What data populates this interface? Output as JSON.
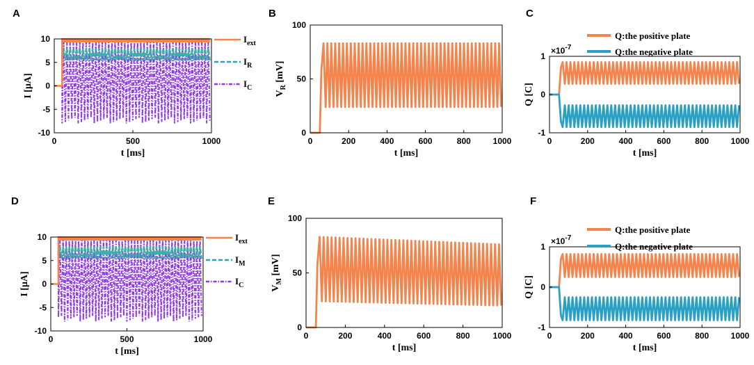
{
  "colors": {
    "orange": "#f4844c",
    "blue": "#2aa0c4",
    "purple": "#9038e8",
    "teal": "#3bb0a4"
  },
  "chart_data": [
    {
      "id": "A",
      "type": "line",
      "panel_label": "A",
      "xlabel": "t [ms]",
      "ylabel": "I [μA]",
      "xlim": [
        0,
        1000
      ],
      "ylim": [
        -10,
        10
      ],
      "x_ticks": [
        "0",
        "500",
        "1000"
      ],
      "y_ticks": [
        "-10",
        "-5",
        "0",
        "5",
        "10"
      ],
      "series": [
        {
          "name": "I_ext",
          "label_main": "I",
          "label_sub": "ext",
          "style": "solid",
          "color": "#f4844c",
          "description": "0 before 50 ms, then constant 10"
        },
        {
          "name": "I_R",
          "label_main": "I",
          "label_sub": "R",
          "style": "dashed",
          "color": "#2aa0c4",
          "description": "oscillates ~5 to ~8 after 50 ms"
        },
        {
          "name": "I_C",
          "label_main": "I",
          "label_sub": "C",
          "style": "dashdot",
          "color": "#9038e8",
          "description": "oscillates ~-8 to ~10 after 50 ms"
        }
      ]
    },
    {
      "id": "B",
      "type": "line",
      "panel_label": "B",
      "xlabel": "t [ms]",
      "ylabel_main": "V",
      "ylabel_sub": "R",
      "ylabel_unit": " [mV]",
      "xlim": [
        0,
        1000
      ],
      "ylim": [
        0,
        100
      ],
      "x_ticks": [
        "0",
        "200",
        "400",
        "600",
        "800",
        "1000"
      ],
      "y_ticks": [
        "0",
        "50",
        "100"
      ],
      "series": [
        {
          "name": "V_R",
          "color": "#f4844c",
          "onset_ms": 50,
          "max": 83,
          "min": 24,
          "cycles": 46
        }
      ]
    },
    {
      "id": "C",
      "type": "line",
      "panel_label": "C",
      "xlabel": "t [ms]",
      "ylabel": "Q [C]",
      "xlim": [
        0,
        1000
      ],
      "ylim": [
        -1,
        1
      ],
      "y_scale_label": "×10",
      "y_scale_exp": "-7",
      "x_ticks": [
        "0",
        "200",
        "400",
        "600",
        "800",
        "1000"
      ],
      "y_ticks": [
        "-1",
        "0",
        "1"
      ],
      "series": [
        {
          "name": "Q:the positive plate",
          "color": "#f4844c",
          "max": 0.85,
          "min": 0.28,
          "cycles": 46
        },
        {
          "name": "Q:the negative plate",
          "color": "#2aa0c4",
          "max": -0.28,
          "min": -0.85,
          "cycles": 46
        }
      ]
    },
    {
      "id": "D",
      "type": "line",
      "panel_label": "D",
      "xlabel": "t [ms]",
      "ylabel": "I [μA]",
      "xlim": [
        0,
        1000
      ],
      "ylim": [
        -10,
        10
      ],
      "x_ticks": [
        "0",
        "500",
        "1000"
      ],
      "y_ticks": [
        "-10",
        "-5",
        "0",
        "5",
        "10"
      ],
      "series": [
        {
          "name": "I_ext",
          "label_main": "I",
          "label_sub": "ext",
          "style": "solid",
          "color": "#f4844c",
          "description": "0 before 50 ms, then constant 10"
        },
        {
          "name": "I_M",
          "label_main": "I",
          "label_sub": "M",
          "style": "dashed",
          "color": "#2aa0c4",
          "description": "oscillates ~5 to ~8 after 50 ms"
        },
        {
          "name": "I_C",
          "label_main": "I",
          "label_sub": "C",
          "style": "dashdot",
          "color": "#9038e8",
          "description": "oscillates ~-8.5 to ~10 after 50 ms"
        }
      ]
    },
    {
      "id": "E",
      "type": "line",
      "panel_label": "E",
      "xlabel": "t [ms]",
      "ylabel_main": "V",
      "ylabel_sub": "M",
      "ylabel_unit": " [mV]",
      "xlim": [
        0,
        1000
      ],
      "ylim": [
        0,
        100
      ],
      "x_ticks": [
        "0",
        "200",
        "400",
        "600",
        "800",
        "1000"
      ],
      "y_ticks": [
        "0",
        "50",
        "100"
      ],
      "series": [
        {
          "name": "V_M",
          "color": "#f4844c",
          "onset_ms": 50,
          "max_start": 83,
          "max_end": 76,
          "min_start": 24,
          "min_end": 20,
          "cycles": 46
        }
      ]
    },
    {
      "id": "F",
      "type": "line",
      "panel_label": "F",
      "xlabel": "t [ms]",
      "ylabel": "Q [C]",
      "xlim": [
        0,
        1000
      ],
      "ylim": [
        -1,
        1
      ],
      "y_scale_label": "×10",
      "y_scale_exp": "-7",
      "x_ticks": [
        "0",
        "200",
        "400",
        "600",
        "800",
        "1000"
      ],
      "y_ticks": [
        "-1",
        "0",
        "1"
      ],
      "series": [
        {
          "name": "Q:the positive plate",
          "color": "#f4844c",
          "max": 0.82,
          "min": 0.25,
          "cycles": 46
        },
        {
          "name": "Q:the negative plate",
          "color": "#2aa0c4",
          "max": -0.25,
          "min": -0.82,
          "cycles": 46
        }
      ]
    }
  ]
}
